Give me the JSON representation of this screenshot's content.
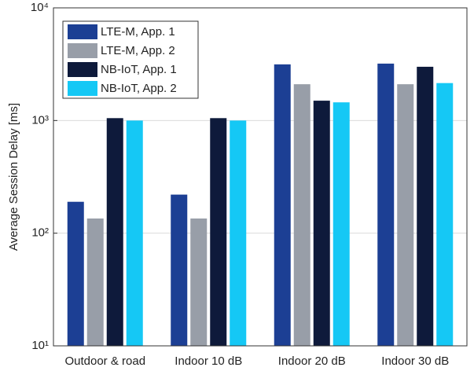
{
  "chart_data": {
    "type": "bar",
    "log_scale": true,
    "grid": true,
    "legend": "upper left",
    "ylabel": "Average Session Delay [ms]",
    "categories": [
      "Outdoor & road",
      "Indoor 10 dB",
      "Indoor 20 dB",
      "Indoor 30 dB"
    ],
    "series": [
      {
        "name": "LTE-M, App. 1",
        "color": "#1c3f94",
        "values": [
          190,
          220,
          3150,
          3200
        ]
      },
      {
        "name": "LTE-M, App. 2",
        "color": "#989ea8",
        "values": [
          135,
          135,
          2100,
          2100
        ]
      },
      {
        "name": "NB-IoT, App. 1",
        "color": "#0e1a3b",
        "values": [
          1050,
          1050,
          1500,
          3000
        ]
      },
      {
        "name": "NB-IoT, App. 2",
        "color": "#15c8f5",
        "values": [
          1000,
          1000,
          1450,
          2150
        ]
      }
    ],
    "ylim": [
      10,
      10000
    ],
    "yticks": [
      {
        "value": 10,
        "label": "10¹"
      },
      {
        "value": 100,
        "label": "10²"
      },
      {
        "value": 1000,
        "label": "10³"
      },
      {
        "value": 10000,
        "label": "10⁴"
      }
    ]
  }
}
